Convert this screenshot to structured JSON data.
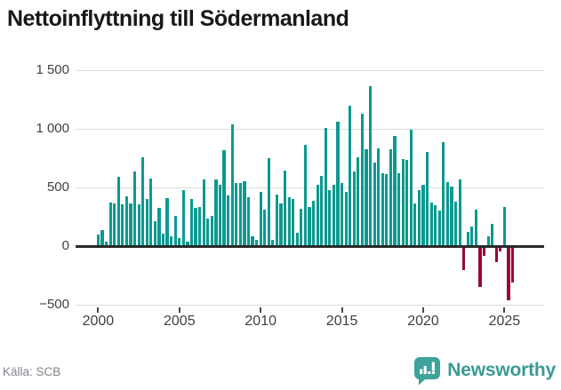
{
  "source": "Källa: SCB",
  "branding": {
    "logo_text": "Newsworthy"
  },
  "colors": {
    "positive_bar": "#0d998f",
    "negative_bar": "#98073b",
    "gridline": "#dbdbdb",
    "zero_line": "#2a2a2a",
    "axis_text": "#3f3f3f",
    "title_text": "#181818",
    "source_text": "#83838c",
    "brand_teal": "#3a9a93"
  },
  "chart_data": {
    "type": "bar",
    "title": "Nettoinflyttning till Södermanland",
    "xlabel": "",
    "ylabel": "",
    "legend": "none",
    "grid": "horizontal",
    "frequency": "quarterly",
    "x_start": "2000 Q1",
    "x_end": "2025 Q3",
    "ylim": [
      -500,
      1500
    ],
    "y_tick_labels": [
      "1 500",
      "1 000",
      "500",
      "0",
      "−500"
    ],
    "y_tick_values": [
      1500,
      1000,
      500,
      0,
      -500
    ],
    "x_tick_labels": [
      "2000",
      "2005",
      "2010",
      "2015",
      "2020",
      "2025"
    ],
    "x_tick_quarter_indices": [
      0,
      20,
      40,
      60,
      80,
      100
    ],
    "series": [
      {
        "name": "Nettoinflyttning till Södermanland",
        "values": [
          100,
          135,
          35,
          370,
          365,
          590,
          355,
          425,
          360,
          635,
          355,
          755,
          405,
          575,
          210,
          325,
          105,
          410,
          80,
          255,
          65,
          480,
          35,
          400,
          325,
          335,
          570,
          235,
          255,
          565,
          520,
          815,
          430,
          1040,
          535,
          540,
          555,
          420,
          80,
          50,
          460,
          310,
          750,
          55,
          440,
          360,
          645,
          420,
          405,
          115,
          320,
          860,
          330,
          390,
          525,
          595,
          1005,
          480,
          520,
          1060,
          540,
          460,
          1200,
          635,
          760,
          1130,
          825,
          1365,
          715,
          830,
          620,
          610,
          825,
          940,
          625,
          740,
          735,
          990,
          360,
          480,
          520,
          805,
          375,
          350,
          305,
          885,
          545,
          510,
          380,
          570,
          -205,
          125,
          165,
          310,
          -345,
          -85,
          80,
          190,
          -135,
          -45,
          335,
          -465,
          -310
        ]
      }
    ]
  }
}
